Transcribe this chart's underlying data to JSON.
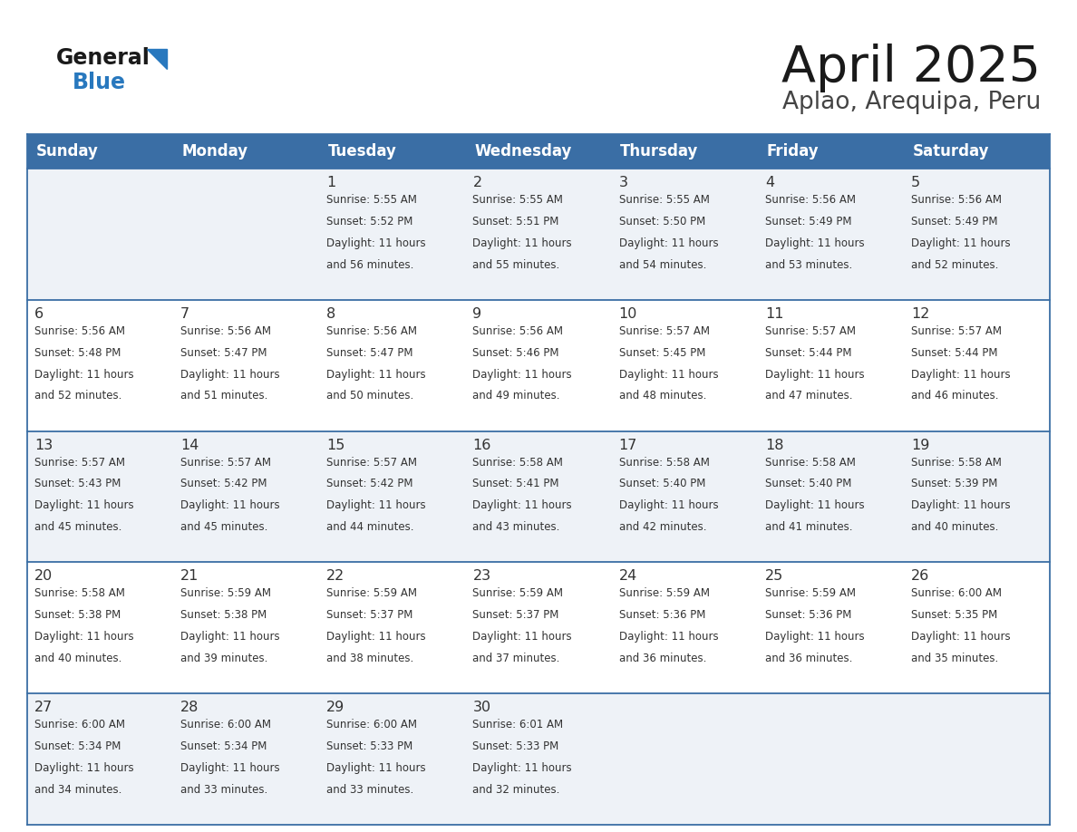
{
  "title": "April 2025",
  "subtitle": "Aplao, Arequipa, Peru",
  "header_color": "#3a6ea5",
  "header_text_color": "#ffffff",
  "cell_bg_even": "#eef2f7",
  "cell_bg_odd": "#ffffff",
  "border_color": "#3a6ea5",
  "text_color": "#333333",
  "title_color": "#1a1a1a",
  "subtitle_color": "#444444",
  "logo_black": "#1a1a1a",
  "logo_blue": "#2878be",
  "days_of_week": [
    "Sunday",
    "Monday",
    "Tuesday",
    "Wednesday",
    "Thursday",
    "Friday",
    "Saturday"
  ],
  "weeks": [
    [
      {
        "day": "",
        "lines": []
      },
      {
        "day": "",
        "lines": []
      },
      {
        "day": "1",
        "lines": [
          "Sunrise: 5:55 AM",
          "Sunset: 5:52 PM",
          "Daylight: 11 hours",
          "and 56 minutes."
        ]
      },
      {
        "day": "2",
        "lines": [
          "Sunrise: 5:55 AM",
          "Sunset: 5:51 PM",
          "Daylight: 11 hours",
          "and 55 minutes."
        ]
      },
      {
        "day": "3",
        "lines": [
          "Sunrise: 5:55 AM",
          "Sunset: 5:50 PM",
          "Daylight: 11 hours",
          "and 54 minutes."
        ]
      },
      {
        "day": "4",
        "lines": [
          "Sunrise: 5:56 AM",
          "Sunset: 5:49 PM",
          "Daylight: 11 hours",
          "and 53 minutes."
        ]
      },
      {
        "day": "5",
        "lines": [
          "Sunrise: 5:56 AM",
          "Sunset: 5:49 PM",
          "Daylight: 11 hours",
          "and 52 minutes."
        ]
      }
    ],
    [
      {
        "day": "6",
        "lines": [
          "Sunrise: 5:56 AM",
          "Sunset: 5:48 PM",
          "Daylight: 11 hours",
          "and 52 minutes."
        ]
      },
      {
        "day": "7",
        "lines": [
          "Sunrise: 5:56 AM",
          "Sunset: 5:47 PM",
          "Daylight: 11 hours",
          "and 51 minutes."
        ]
      },
      {
        "day": "8",
        "lines": [
          "Sunrise: 5:56 AM",
          "Sunset: 5:47 PM",
          "Daylight: 11 hours",
          "and 50 minutes."
        ]
      },
      {
        "day": "9",
        "lines": [
          "Sunrise: 5:56 AM",
          "Sunset: 5:46 PM",
          "Daylight: 11 hours",
          "and 49 minutes."
        ]
      },
      {
        "day": "10",
        "lines": [
          "Sunrise: 5:57 AM",
          "Sunset: 5:45 PM",
          "Daylight: 11 hours",
          "and 48 minutes."
        ]
      },
      {
        "day": "11",
        "lines": [
          "Sunrise: 5:57 AM",
          "Sunset: 5:44 PM",
          "Daylight: 11 hours",
          "and 47 minutes."
        ]
      },
      {
        "day": "12",
        "lines": [
          "Sunrise: 5:57 AM",
          "Sunset: 5:44 PM",
          "Daylight: 11 hours",
          "and 46 minutes."
        ]
      }
    ],
    [
      {
        "day": "13",
        "lines": [
          "Sunrise: 5:57 AM",
          "Sunset: 5:43 PM",
          "Daylight: 11 hours",
          "and 45 minutes."
        ]
      },
      {
        "day": "14",
        "lines": [
          "Sunrise: 5:57 AM",
          "Sunset: 5:42 PM",
          "Daylight: 11 hours",
          "and 45 minutes."
        ]
      },
      {
        "day": "15",
        "lines": [
          "Sunrise: 5:57 AM",
          "Sunset: 5:42 PM",
          "Daylight: 11 hours",
          "and 44 minutes."
        ]
      },
      {
        "day": "16",
        "lines": [
          "Sunrise: 5:58 AM",
          "Sunset: 5:41 PM",
          "Daylight: 11 hours",
          "and 43 minutes."
        ]
      },
      {
        "day": "17",
        "lines": [
          "Sunrise: 5:58 AM",
          "Sunset: 5:40 PM",
          "Daylight: 11 hours",
          "and 42 minutes."
        ]
      },
      {
        "day": "18",
        "lines": [
          "Sunrise: 5:58 AM",
          "Sunset: 5:40 PM",
          "Daylight: 11 hours",
          "and 41 minutes."
        ]
      },
      {
        "day": "19",
        "lines": [
          "Sunrise: 5:58 AM",
          "Sunset: 5:39 PM",
          "Daylight: 11 hours",
          "and 40 minutes."
        ]
      }
    ],
    [
      {
        "day": "20",
        "lines": [
          "Sunrise: 5:58 AM",
          "Sunset: 5:38 PM",
          "Daylight: 11 hours",
          "and 40 minutes."
        ]
      },
      {
        "day": "21",
        "lines": [
          "Sunrise: 5:59 AM",
          "Sunset: 5:38 PM",
          "Daylight: 11 hours",
          "and 39 minutes."
        ]
      },
      {
        "day": "22",
        "lines": [
          "Sunrise: 5:59 AM",
          "Sunset: 5:37 PM",
          "Daylight: 11 hours",
          "and 38 minutes."
        ]
      },
      {
        "day": "23",
        "lines": [
          "Sunrise: 5:59 AM",
          "Sunset: 5:37 PM",
          "Daylight: 11 hours",
          "and 37 minutes."
        ]
      },
      {
        "day": "24",
        "lines": [
          "Sunrise: 5:59 AM",
          "Sunset: 5:36 PM",
          "Daylight: 11 hours",
          "and 36 minutes."
        ]
      },
      {
        "day": "25",
        "lines": [
          "Sunrise: 5:59 AM",
          "Sunset: 5:36 PM",
          "Daylight: 11 hours",
          "and 36 minutes."
        ]
      },
      {
        "day": "26",
        "lines": [
          "Sunrise: 6:00 AM",
          "Sunset: 5:35 PM",
          "Daylight: 11 hours",
          "and 35 minutes."
        ]
      }
    ],
    [
      {
        "day": "27",
        "lines": [
          "Sunrise: 6:00 AM",
          "Sunset: 5:34 PM",
          "Daylight: 11 hours",
          "and 34 minutes."
        ]
      },
      {
        "day": "28",
        "lines": [
          "Sunrise: 6:00 AM",
          "Sunset: 5:34 PM",
          "Daylight: 11 hours",
          "and 33 minutes."
        ]
      },
      {
        "day": "29",
        "lines": [
          "Sunrise: 6:00 AM",
          "Sunset: 5:33 PM",
          "Daylight: 11 hours",
          "and 33 minutes."
        ]
      },
      {
        "day": "30",
        "lines": [
          "Sunrise: 6:01 AM",
          "Sunset: 5:33 PM",
          "Daylight: 11 hours",
          "and 32 minutes."
        ]
      },
      {
        "day": "",
        "lines": []
      },
      {
        "day": "",
        "lines": []
      },
      {
        "day": "",
        "lines": []
      }
    ]
  ]
}
